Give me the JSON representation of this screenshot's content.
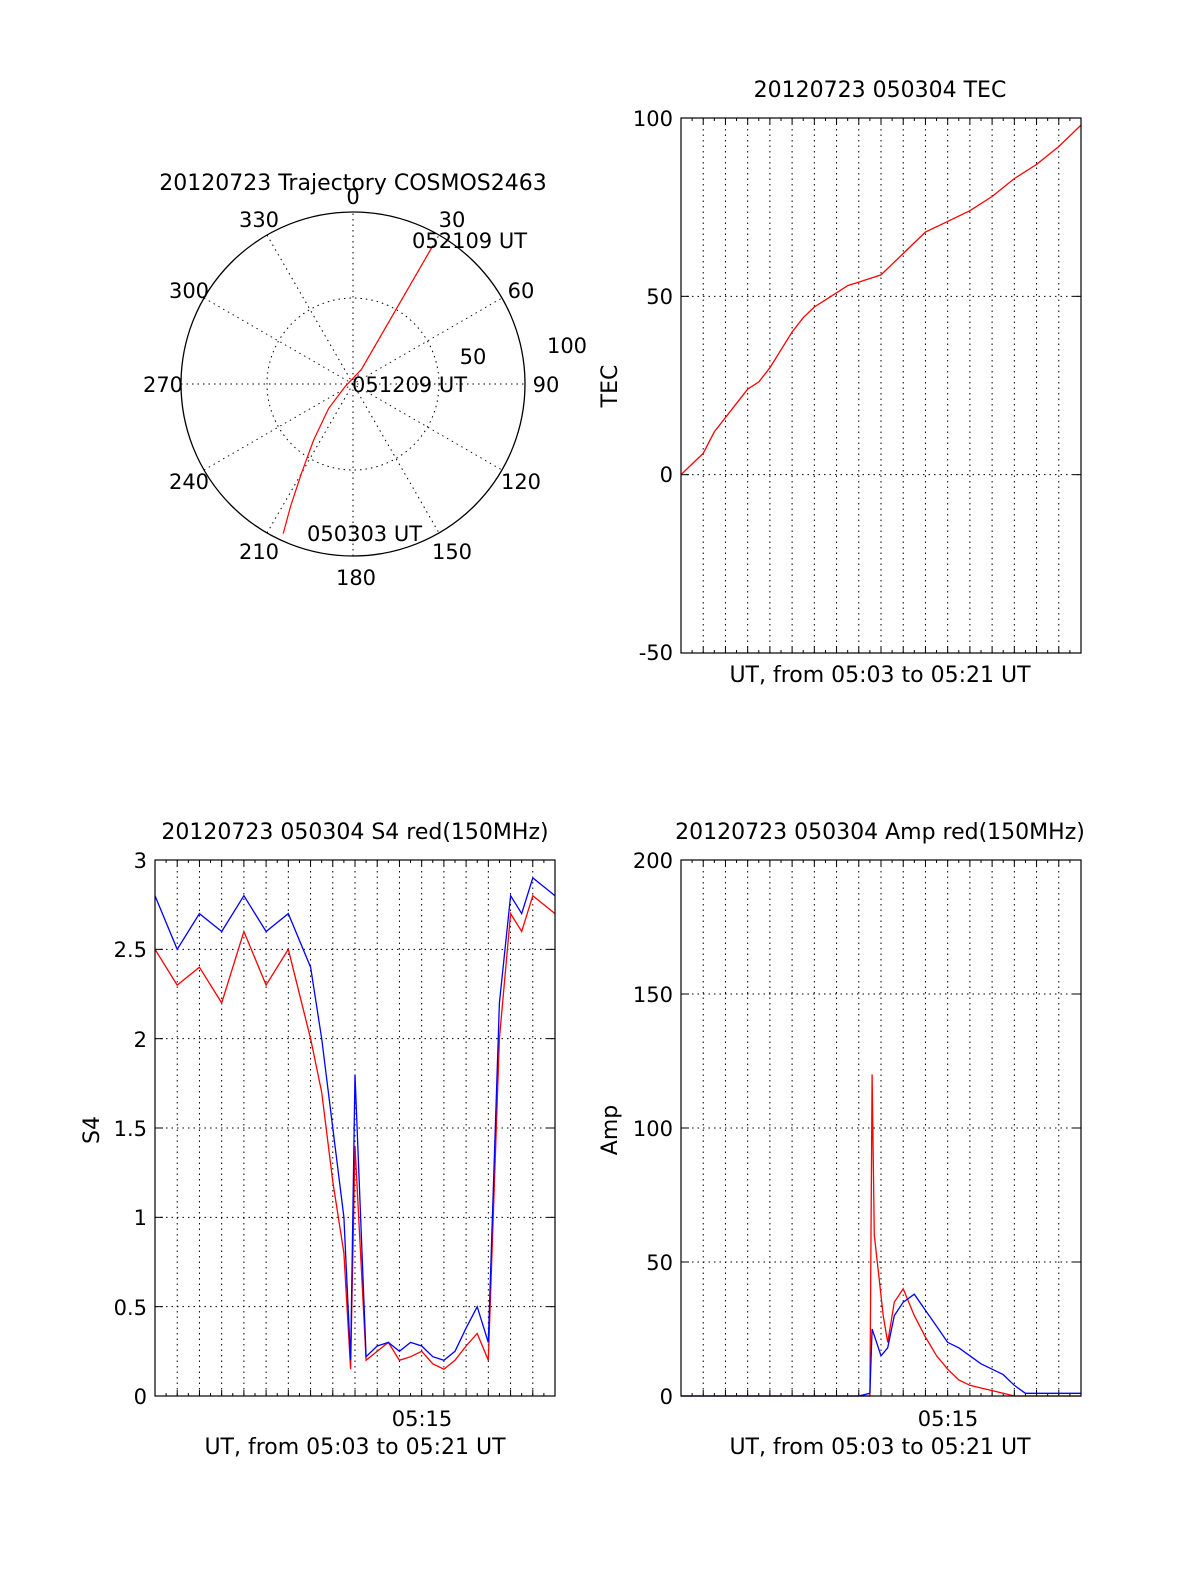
{
  "chart_data": [
    {
      "id": "trajectory",
      "type": "polar",
      "title": "20120723 Trajectory COSMOS2463",
      "azimuth_labels": [
        "0",
        "30",
        "60",
        "90",
        "120",
        "150",
        "180",
        "210",
        "240",
        "270",
        "300",
        "330"
      ],
      "radius_labels": [
        "50",
        "100"
      ],
      "rlim": [
        0,
        100
      ],
      "trajectory": {
        "color": "#ff0000",
        "azimuth_deg": [
          205,
          207,
          210,
          215,
          225,
          250,
          30,
          30,
          30,
          30,
          30
        ],
        "zenith_distance": [
          96,
          80,
          60,
          40,
          20,
          5,
          10,
          30,
          55,
          75,
          93
        ]
      },
      "annotations": [
        {
          "text": "052109 UT",
          "azimuth_deg": 30,
          "zenith_distance": 93
        },
        {
          "text": "051209 UT",
          "azimuth_deg": 90,
          "zenith_distance": 3
        },
        {
          "text": "050303 UT",
          "azimuth_deg": 205,
          "zenith_distance": 96
        }
      ]
    },
    {
      "id": "tec",
      "type": "line",
      "title": "20120723 050304 TEC",
      "xlabel": "UT, from 05:03 to 05:21 UT",
      "ylabel": "TEC",
      "xlim": [
        0,
        18
      ],
      "ylim": [
        -50,
        100
      ],
      "yticks": [
        "-50",
        "0",
        "50",
        "100"
      ],
      "grid": true,
      "series": [
        {
          "color": "#ff0000",
          "x": [
            0,
            0.5,
            1,
            1.5,
            2,
            2.5,
            3,
            3.5,
            4,
            4.5,
            5,
            5.5,
            6,
            6.5,
            7,
            7.5,
            8,
            8.5,
            9,
            9.5,
            10,
            11,
            12,
            13,
            14,
            15,
            16,
            17,
            18
          ],
          "y": [
            0,
            3,
            6,
            12,
            16,
            20,
            24,
            26,
            30,
            35,
            40,
            44,
            47,
            49,
            51,
            53,
            54,
            55,
            56,
            59,
            62,
            68,
            71,
            74,
            78,
            83,
            87,
            92,
            98
          ]
        }
      ]
    },
    {
      "id": "s4",
      "type": "line",
      "title": "20120723 050304 S4 red(150MHz)",
      "xlabel": "UT, from 05:03 to 05:21 UT",
      "ylabel": "S4",
      "xlim": [
        0,
        18
      ],
      "ylim": [
        0,
        3
      ],
      "yticks": [
        "0",
        "0.5",
        "1",
        "1.5",
        "2",
        "2.5",
        "3"
      ],
      "xtick_label": "05:15",
      "xtick_value": 12,
      "grid": true,
      "series": [
        {
          "color": "#ff0000",
          "x": [
            0,
            1,
            2,
            3,
            4,
            5,
            6,
            7,
            7.5,
            8,
            8.5,
            8.8,
            9,
            9.5,
            10,
            10.5,
            11,
            11.5,
            12,
            12.5,
            13,
            13.5,
            14,
            14.5,
            15,
            15.5,
            16,
            16.5,
            17,
            18
          ],
          "y": [
            2.5,
            2.3,
            2.4,
            2.2,
            2.6,
            2.3,
            2.5,
            2.0,
            1.7,
            1.2,
            0.8,
            0.15,
            1.4,
            0.2,
            0.25,
            0.3,
            0.2,
            0.22,
            0.25,
            0.18,
            0.15,
            0.2,
            0.28,
            0.35,
            0.2,
            2.0,
            2.7,
            2.6,
            2.8,
            2.7
          ]
        },
        {
          "color": "#0000ff",
          "x": [
            0,
            1,
            2,
            3,
            4,
            5,
            6,
            7,
            7.5,
            8,
            8.5,
            8.8,
            9,
            9.5,
            10,
            10.5,
            11,
            11.5,
            12,
            12.5,
            13,
            13.5,
            14,
            14.5,
            15,
            15.5,
            16,
            16.5,
            17,
            18
          ],
          "y": [
            2.8,
            2.5,
            2.7,
            2.6,
            2.8,
            2.6,
            2.7,
            2.4,
            2.0,
            1.5,
            1.0,
            0.2,
            1.8,
            0.22,
            0.28,
            0.3,
            0.25,
            0.3,
            0.28,
            0.22,
            0.2,
            0.25,
            0.38,
            0.5,
            0.3,
            2.2,
            2.8,
            2.7,
            2.9,
            2.8
          ]
        }
      ]
    },
    {
      "id": "amp",
      "type": "line",
      "title": "20120723 050304 Amp red(150MHz)",
      "xlabel": "UT, from 05:03 to 05:21 UT",
      "ylabel": "Amp",
      "xlim": [
        0,
        18
      ],
      "ylim": [
        0,
        200
      ],
      "yticks": [
        "0",
        "50",
        "100",
        "150",
        "200"
      ],
      "xtick_label": "05:15",
      "xtick_value": 12,
      "grid": true,
      "series": [
        {
          "color": "#ff0000",
          "x": [
            0,
            8,
            8.5,
            8.6,
            8.7,
            8.9,
            9.1,
            9.3,
            9.6,
            10,
            10.5,
            11,
            11.5,
            12,
            12.5,
            13,
            13.5,
            14,
            14.5,
            15,
            18
          ],
          "y": [
            0,
            0,
            0,
            120,
            60,
            45,
            30,
            20,
            35,
            40,
            30,
            22,
            15,
            10,
            6,
            4,
            3,
            2,
            1,
            0,
            0
          ]
        },
        {
          "color": "#0000ff",
          "x": [
            0,
            8,
            8.5,
            8.6,
            8.8,
            9.0,
            9.3,
            9.6,
            10,
            10.5,
            11,
            11.5,
            12,
            12.5,
            13,
            13.5,
            14,
            14.5,
            15,
            15.5,
            18
          ],
          "y": [
            0,
            0,
            1,
            25,
            20,
            15,
            18,
            30,
            35,
            38,
            32,
            26,
            20,
            18,
            15,
            12,
            10,
            8,
            4,
            1,
            1
          ]
        }
      ]
    }
  ]
}
